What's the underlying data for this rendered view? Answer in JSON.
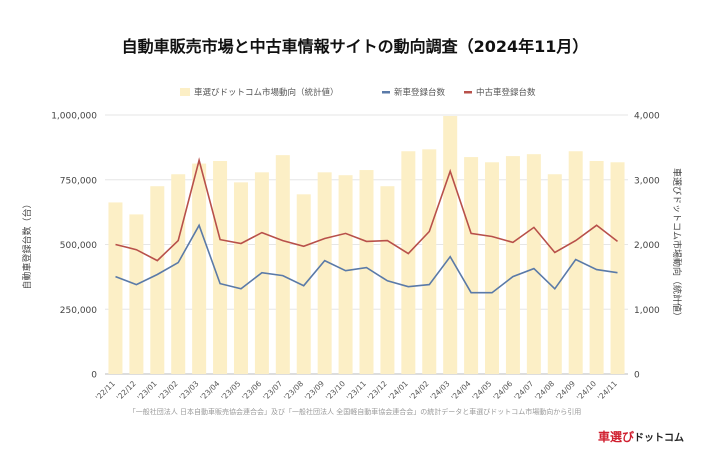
{
  "title": "自動車販売市場と中古車情報サイトの動向調査（2024年11月）",
  "footnote": "「一般社団法人 日本自動車販売協会連合会」及び「一般社団法人 全国軽自動車協会連合会」の統計データと車選びドットコム市場動向から引用",
  "logo": {
    "part1": "車選び",
    "part2": "ドットコム"
  },
  "colors": {
    "bars": "#fcefc6",
    "new": "#5a7aa8",
    "used": "#b8504a"
  },
  "chart_data": {
    "type": "bar+line",
    "title": "自動車販売市場と中古車情報サイトの動向調査（2024年11月）",
    "ylabel_left": "自動車登録台数（台）",
    "ylabel_right": "車選びドットコム市場動向（統計値）",
    "ylim_left": [
      0,
      1000000
    ],
    "ylim_right": [
      0,
      4000
    ],
    "yticks_left": [
      "0",
      "250,000",
      "500,000",
      "750,000",
      "1,000,000"
    ],
    "yticks_right": [
      "0",
      "1,000",
      "2,000",
      "3,000",
      "4,000"
    ],
    "grid": true,
    "legend_position": "top",
    "categories": [
      "'22/11",
      "'22/12",
      "'23/01",
      "'23/02",
      "'23/03",
      "'23/04",
      "'23/05",
      "'23/06",
      "'23/07",
      "'23/08",
      "'23/09",
      "'23/10",
      "'23/11",
      "'23/12",
      "'24/01",
      "'24/02",
      "'24/03",
      "'24/04",
      "'24/05",
      "'24/06",
      "'24/07",
      "'24/08",
      "'24/09",
      "'24/10",
      "'24/11"
    ],
    "series": [
      {
        "name": "車選びドットコム市場動向（統計値）",
        "type": "bar",
        "axis": "right",
        "values": [
          2650,
          2465,
          2900,
          3085,
          3250,
          3290,
          2960,
          3115,
          3380,
          2775,
          3115,
          3070,
          3150,
          2900,
          3440,
          3470,
          3985,
          3350,
          3270,
          3365,
          3395,
          3085,
          3440,
          3290,
          3270
        ]
      },
      {
        "name": "新車登録台数",
        "type": "line",
        "axis": "left",
        "values": [
          376000,
          345000,
          384000,
          430000,
          574000,
          349000,
          329000,
          391000,
          380000,
          341000,
          438000,
          399000,
          411000,
          360000,
          337000,
          345000,
          453000,
          314000,
          314000,
          376000,
          407000,
          329000,
          442000,
          403000,
          391000
        ]
      },
      {
        "name": "中古車登録台数",
        "type": "line",
        "axis": "left",
        "values": [
          500000,
          480000,
          438000,
          515000,
          825000,
          519000,
          504000,
          546000,
          515000,
          493000,
          523000,
          543000,
          512000,
          515000,
          465000,
          550000,
          783000,
          543000,
          531000,
          508000,
          566000,
          469000,
          515000,
          574000,
          512000
        ]
      }
    ]
  }
}
